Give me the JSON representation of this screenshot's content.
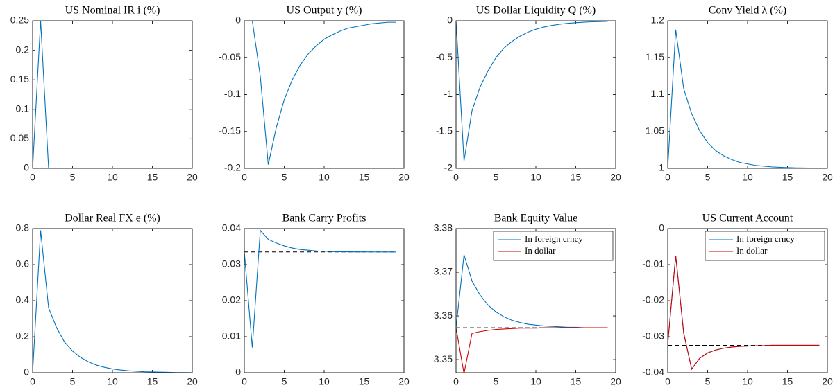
{
  "chart_data": [
    {
      "type": "line",
      "title": "US Nominal IR i (%)",
      "x": [
        0,
        1,
        2,
        3,
        4,
        5,
        6,
        7,
        8,
        9,
        10,
        11,
        12,
        13,
        14,
        15,
        16,
        17,
        18,
        19,
        20
      ],
      "series": [
        {
          "color": "#0072bd",
          "values": [
            0,
            0.25,
            0,
            0,
            0,
            0,
            0,
            0,
            0,
            0,
            0,
            0,
            0,
            0,
            0,
            0,
            0,
            0,
            0,
            0,
            0
          ]
        }
      ],
      "xlim": [
        0,
        20
      ],
      "xticks": [
        0,
        5,
        10,
        15,
        20
      ],
      "ylim": [
        0,
        0.25
      ],
      "yticks": [
        0,
        0.05,
        0.1,
        0.15,
        0.2,
        0.25
      ]
    },
    {
      "type": "line",
      "title": "US Output y (%)",
      "x": [
        0,
        1,
        2,
        3,
        4,
        5,
        6,
        7,
        8,
        9,
        10,
        11,
        12,
        13,
        14,
        15,
        16,
        17,
        18,
        19
      ],
      "series": [
        {
          "color": "#0072bd",
          "values": [
            0,
            0,
            -0.075,
            -0.195,
            -0.145,
            -0.107,
            -0.08,
            -0.06,
            -0.045,
            -0.034,
            -0.025,
            -0.019,
            -0.014,
            -0.01,
            -0.008,
            -0.006,
            -0.004,
            -0.003,
            -0.002,
            -0.002
          ]
        }
      ],
      "xlim": [
        0,
        20
      ],
      "xticks": [
        0,
        5,
        10,
        15,
        20
      ],
      "ylim": [
        -0.2,
        0
      ],
      "yticks": [
        -0.2,
        -0.15,
        -0.1,
        -0.05,
        0
      ]
    },
    {
      "type": "line",
      "title": "US Dollar Liquidity Q (%)",
      "x": [
        0,
        1,
        2,
        3,
        4,
        5,
        6,
        7,
        8,
        9,
        10,
        11,
        12,
        13,
        14,
        15,
        16,
        17,
        18,
        19
      ],
      "series": [
        {
          "color": "#0072bd",
          "values": [
            0,
            -1.9,
            -1.22,
            -0.9,
            -0.68,
            -0.5,
            -0.37,
            -0.28,
            -0.21,
            -0.155,
            -0.115,
            -0.085,
            -0.063,
            -0.047,
            -0.035,
            -0.026,
            -0.019,
            -0.014,
            -0.011,
            -0.008
          ]
        }
      ],
      "xlim": [
        0,
        20
      ],
      "xticks": [
        0,
        5,
        10,
        15,
        20
      ],
      "ylim": [
        -2,
        0
      ],
      "yticks": [
        -2,
        -1.5,
        -1,
        -0.5,
        0
      ]
    },
    {
      "type": "line",
      "title": "Conv Yield λ (%)",
      "x": [
        0,
        1,
        2,
        3,
        4,
        5,
        6,
        7,
        8,
        9,
        10,
        11,
        12,
        13,
        14,
        15,
        16,
        17,
        18,
        19,
        20
      ],
      "series": [
        {
          "color": "#0072bd",
          "values": [
            1,
            1.188,
            1.108,
            1.074,
            1.051,
            1.035,
            1.024,
            1.017,
            1.012,
            1.008,
            1.006,
            1.004,
            1.003,
            1.002,
            1.0015,
            1.001,
            1.0007,
            1.0005,
            1.0003,
            1.0002,
            1.0001
          ]
        }
      ],
      "xlim": [
        0,
        20
      ],
      "xticks": [
        0,
        5,
        10,
        15,
        20
      ],
      "ylim": [
        1,
        1.2
      ],
      "yticks": [
        1,
        1.05,
        1.1,
        1.15,
        1.2
      ]
    },
    {
      "type": "line",
      "title": "Dollar Real FX e (%)",
      "x": [
        0,
        1,
        2,
        3,
        4,
        5,
        6,
        7,
        8,
        9,
        10,
        11,
        12,
        13,
        14,
        15,
        16,
        17,
        18,
        19,
        20
      ],
      "series": [
        {
          "color": "#0072bd",
          "values": [
            0,
            0.79,
            0.36,
            0.25,
            0.17,
            0.12,
            0.085,
            0.06,
            0.042,
            0.03,
            0.021,
            0.015,
            0.011,
            0.008,
            0.005,
            0.004,
            0.003,
            0.002,
            0.001,
            0.001,
            0.0005
          ]
        }
      ],
      "xlim": [
        0,
        20
      ],
      "xticks": [
        0,
        5,
        10,
        15,
        20
      ],
      "ylim": [
        0,
        0.8
      ],
      "yticks": [
        0,
        0.2,
        0.4,
        0.6,
        0.8
      ]
    },
    {
      "type": "line",
      "title": "Bank Carry Profits",
      "x": [
        0,
        1,
        2,
        3,
        4,
        5,
        6,
        7,
        8,
        9,
        10,
        11,
        12,
        13,
        14,
        15,
        16,
        17,
        18,
        19
      ],
      "series": [
        {
          "color": "#0072bd",
          "values": [
            0.0335,
            0.007,
            0.0395,
            0.037,
            0.036,
            0.0352,
            0.0346,
            0.0342,
            0.034,
            0.0338,
            0.0337,
            0.0336,
            0.03357,
            0.03355,
            0.03353,
            0.03352,
            0.03351,
            0.0335,
            0.0335,
            0.0335
          ]
        }
      ],
      "hline": 0.0335,
      "xlim": [
        0,
        20
      ],
      "xticks": [
        0,
        5,
        10,
        15,
        20
      ],
      "ylim": [
        0,
        0.04
      ],
      "yticks": [
        0,
        0.01,
        0.02,
        0.03,
        0.04
      ]
    },
    {
      "type": "line",
      "title": "Bank Equity Value",
      "x": [
        0,
        1,
        2,
        3,
        4,
        5,
        6,
        7,
        8,
        9,
        10,
        11,
        12,
        13,
        14,
        15,
        16,
        17,
        18,
        19
      ],
      "series": [
        {
          "name": "In foreign crncy",
          "color": "#0072bd",
          "values": [
            3.3573,
            3.374,
            3.368,
            3.3648,
            3.3625,
            3.3609,
            3.3598,
            3.359,
            3.3585,
            3.3581,
            3.3579,
            3.3577,
            3.3576,
            3.3575,
            3.3574,
            3.3574,
            3.3573,
            3.3573,
            3.3573,
            3.3573
          ]
        },
        {
          "name": "In dollar",
          "color": "#d00000",
          "values": [
            3.3573,
            3.3468,
            3.356,
            3.3564,
            3.3567,
            3.3569,
            3.357,
            3.3571,
            3.3572,
            3.3572,
            3.3572,
            3.3573,
            3.3573,
            3.3573,
            3.3573,
            3.3573,
            3.3573,
            3.3573,
            3.3573,
            3.3573
          ]
        }
      ],
      "hline": 3.3573,
      "legend": "upper right",
      "xlim": [
        0,
        20
      ],
      "xticks": [
        0,
        5,
        10,
        15,
        20
      ],
      "ylim": [
        3.347,
        3.38
      ],
      "yticks": [
        3.35,
        3.36,
        3.37,
        3.38
      ]
    },
    {
      "type": "line",
      "title": "US Current Account",
      "x": [
        0,
        1,
        2,
        3,
        4,
        5,
        6,
        7,
        8,
        9,
        10,
        11,
        12,
        13,
        14,
        15,
        16,
        17,
        18,
        19
      ],
      "series": [
        {
          "name": "In foreign crncy",
          "color": "#0072bd",
          "values": [
            -0.032,
            -0.0075,
            -0.029,
            -0.039,
            -0.036,
            -0.0345,
            -0.0337,
            -0.0332,
            -0.0329,
            -0.0327,
            -0.0326,
            -0.0325,
            -0.0325,
            -0.0324,
            -0.0324,
            -0.0324,
            -0.0324,
            -0.0324,
            -0.0324,
            -0.0324
          ]
        },
        {
          "name": "In dollar",
          "color": "#d00000",
          "values": [
            -0.032,
            -0.0075,
            -0.029,
            -0.039,
            -0.036,
            -0.0345,
            -0.0337,
            -0.0332,
            -0.0329,
            -0.0327,
            -0.0326,
            -0.0325,
            -0.0325,
            -0.0324,
            -0.0324,
            -0.0324,
            -0.0324,
            -0.0324,
            -0.0324,
            -0.0324
          ]
        }
      ],
      "hline": -0.0324,
      "legend": "upper right",
      "xlim": [
        0,
        20
      ],
      "xticks": [
        0,
        5,
        10,
        15,
        20
      ],
      "ylim": [
        -0.04,
        0
      ],
      "yticks": [
        -0.04,
        -0.03,
        -0.02,
        -0.01,
        0
      ]
    }
  ]
}
